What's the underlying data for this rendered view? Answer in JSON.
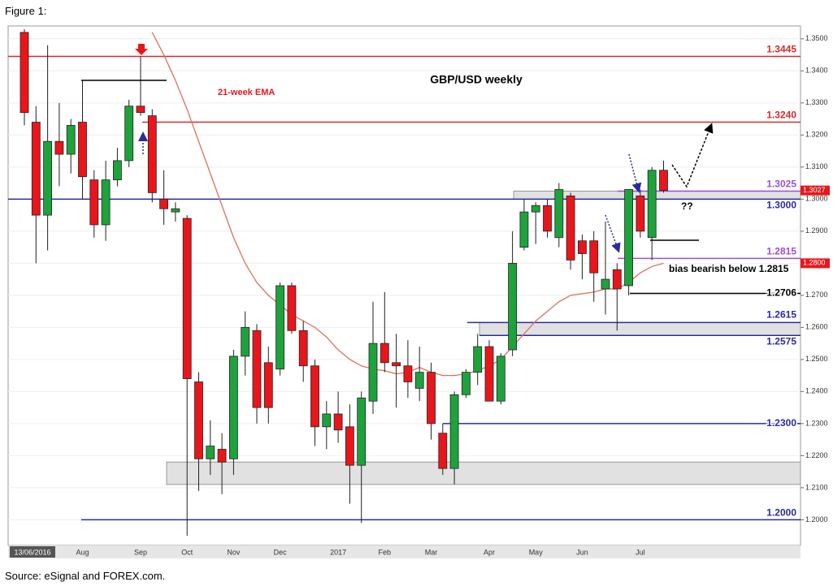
{
  "figure_label": "Figure 1:",
  "source": "Source: eSignal and FOREX.com.",
  "chart_data": {
    "type": "candlestick",
    "title": "GBP/USD weekly",
    "categories": [
      "13/06/2016",
      null,
      null,
      null,
      null,
      "Aug",
      null,
      null,
      null,
      null,
      "Sep",
      null,
      null,
      null,
      "Oct",
      null,
      null,
      null,
      "Nov",
      null,
      null,
      null,
      "Dec",
      null,
      null,
      null,
      null,
      "2017",
      null,
      null,
      null,
      "Feb",
      null,
      null,
      null,
      "Mar",
      null,
      null,
      null,
      null,
      "Apr",
      null,
      null,
      null,
      "May",
      null,
      null,
      null,
      "Jun",
      null,
      null,
      null,
      null,
      "Jul",
      null,
      null
    ],
    "open": [
      1.352,
      1.324,
      1.295,
      1.318,
      1.314,
      1.324,
      1.306,
      1.292,
      1.306,
      1.312,
      1.329,
      1.326,
      1.3,
      1.296,
      1.294,
      1.243,
      1.219,
      1.222,
      1.219,
      1.251,
      1.259,
      1.249,
      1.247,
      1.273,
      1.259,
      1.248,
      1.229,
      1.233,
      1.229,
      1.217,
      1.237,
      1.255,
      1.249,
      1.248,
      1.241,
      1.246,
      1.227,
      1.216,
      1.239,
      1.246,
      1.254,
      1.237,
      1.253,
      1.285,
      1.296,
      1.298,
      1.288,
      1.301,
      1.287,
      1.287,
      1.272,
      1.278,
      1.273,
      1.301,
      1.288,
      1.309
    ],
    "high": [
      1.353,
      1.329,
      1.348,
      1.33,
      1.325,
      1.337,
      1.309,
      1.312,
      1.316,
      1.331,
      1.3445,
      1.328,
      1.309,
      1.299,
      1.295,
      1.246,
      1.231,
      1.227,
      1.253,
      1.265,
      1.261,
      1.254,
      1.274,
      1.274,
      1.262,
      1.25,
      1.237,
      1.24,
      1.236,
      1.24,
      1.268,
      1.271,
      1.258,
      1.256,
      1.254,
      1.249,
      1.23,
      1.24,
      1.247,
      1.258,
      1.256,
      1.252,
      1.29,
      1.3,
      1.299,
      1.3,
      1.305,
      1.302,
      1.289,
      1.29,
      1.293,
      1.28,
      1.303,
      1.303,
      1.31,
      1.312
    ],
    "low": [
      1.323,
      1.28,
      1.284,
      1.304,
      1.308,
      1.3,
      1.288,
      1.287,
      1.304,
      1.31,
      1.326,
      1.299,
      1.292,
      1.293,
      1.195,
      1.209,
      1.214,
      1.208,
      1.214,
      1.245,
      1.23,
      1.23,
      1.245,
      1.258,
      1.243,
      1.223,
      1.222,
      1.224,
      1.205,
      1.199,
      1.233,
      1.246,
      1.235,
      1.238,
      1.237,
      1.225,
      1.214,
      1.211,
      1.238,
      1.242,
      1.237,
      1.236,
      1.251,
      1.284,
      1.286,
      1.288,
      1.285,
      1.278,
      1.275,
      1.268,
      1.264,
      1.259,
      1.27,
      1.288,
      1.281,
      1.302
    ],
    "close": [
      1.327,
      1.295,
      1.318,
      1.314,
      1.323,
      1.307,
      1.292,
      1.306,
      1.312,
      1.329,
      1.327,
      1.302,
      1.297,
      1.297,
      1.244,
      1.219,
      1.223,
      1.218,
      1.251,
      1.26,
      1.235,
      1.235,
      1.273,
      1.259,
      1.248,
      1.229,
      1.233,
      1.228,
      1.217,
      1.238,
      1.255,
      1.249,
      1.248,
      1.243,
      1.246,
      1.23,
      1.216,
      1.239,
      1.246,
      1.254,
      1.237,
      1.251,
      1.28,
      1.296,
      1.298,
      1.29,
      1.303,
      1.281,
      1.283,
      1.277,
      1.275,
      1.272,
      1.303,
      1.29,
      1.309,
      1.3027
    ],
    "up_color": "#1ea23c",
    "down_color": "#e8161b",
    "series": [
      {
        "name": "21-week EMA",
        "color": "#e0705a",
        "values": [
          null,
          null,
          null,
          null,
          null,
          null,
          null,
          null,
          null,
          null,
          null,
          1.352,
          1.345,
          1.337,
          1.328,
          1.318,
          1.308,
          1.298,
          1.288,
          1.28,
          1.274,
          1.27,
          1.267,
          1.264,
          1.262,
          1.26,
          1.257,
          1.253,
          1.25,
          1.248,
          1.247,
          1.2465,
          1.2455,
          1.246,
          1.2475,
          1.246,
          1.245,
          1.245,
          1.2455,
          1.2465,
          1.248,
          1.25,
          1.254,
          1.258,
          1.262,
          1.265,
          1.268,
          1.27,
          1.2705,
          1.271,
          1.272,
          1.272,
          1.274,
          1.277,
          1.279,
          1.28
        ]
      }
    ],
    "levels": [
      {
        "value": 1.3445,
        "color": "#d42a2a"
      },
      {
        "value": 1.324,
        "label": "1.3240",
        "color": "#d42a2a"
      },
      {
        "value": 1.3025,
        "color": "#9b4fd4"
      },
      {
        "value": 1.3,
        "label": "1.3000",
        "color": "#2a2aa0"
      },
      {
        "value": 1.2815,
        "color": "#9b4fd4"
      },
      {
        "value": 1.2706,
        "color": "#000000"
      },
      {
        "value": 1.2615,
        "color": "#2a2aa0"
      },
      {
        "value": 1.2575,
        "color": "#2a2aa0"
      },
      {
        "value": 1.23,
        "label": "1.2300",
        "color": "#2a2aa0"
      },
      {
        "value": 1.2,
        "label": "1.2000",
        "color": "#2a2aa0"
      }
    ],
    "zones": [
      {
        "low": 1.3,
        "high": 1.3025
      },
      {
        "low": 1.2575,
        "high": 1.2615
      },
      {
        "low": 1.211,
        "high": 1.218
      }
    ],
    "price_tags": [
      {
        "value": 1.3027,
        "color": "#e8161b"
      },
      {
        "value": 1.28,
        "label": "1.2800",
        "color": "#e8161b"
      }
    ],
    "annotations": [
      "bias bearish below 1.2815",
      "??"
    ],
    "ylim": [
      1.192,
      1.354
    ],
    "yticks": [
      {
        "value": 1.2,
        "label": "1.2000"
      },
      {
        "value": 1.21,
        "label": "1.2100"
      },
      {
        "value": 1.22,
        "label": "1.2200"
      },
      {
        "value": 1.23,
        "label": "1.2300"
      },
      {
        "value": 1.24,
        "label": "1.2400"
      },
      {
        "value": 1.25,
        "label": "1.2500"
      },
      {
        "value": 1.26,
        "label": "1.2600"
      },
      {
        "value": 1.27,
        "label": "1.2700"
      },
      {
        "value": 1.28,
        "label": "1.2800"
      },
      {
        "value": 1.29,
        "label": "1.2900"
      },
      {
        "value": 1.3,
        "label": "1.3000"
      },
      {
        "value": 1.31,
        "label": "1.3100"
      },
      {
        "value": 1.32,
        "label": "1.3200"
      },
      {
        "value": 1.33,
        "label": "1.3300"
      },
      {
        "value": 1.34,
        "label": "1.3400"
      },
      {
        "value": 1.35,
        "label": "1.3500"
      }
    ]
  }
}
